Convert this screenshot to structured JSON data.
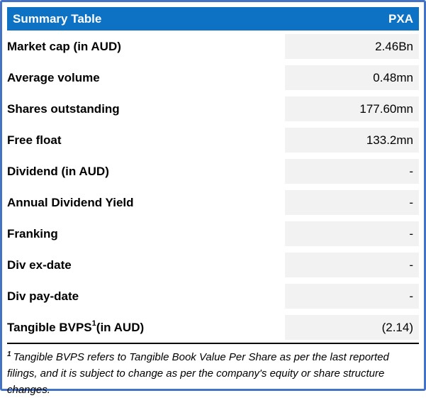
{
  "header": {
    "title": "Summary Table",
    "ticker": "PXA"
  },
  "rows": [
    {
      "label_pre": "Market cap (in AUD)",
      "sup": "",
      "label_post": "",
      "value": "2.46Bn"
    },
    {
      "label_pre": "Average volume",
      "sup": "",
      "label_post": "",
      "value": "0.48mn"
    },
    {
      "label_pre": "Shares outstanding",
      "sup": "",
      "label_post": "",
      "value": "177.60mn"
    },
    {
      "label_pre": "Free float",
      "sup": "",
      "label_post": "",
      "value": "133.2mn"
    },
    {
      "label_pre": "Dividend (in AUD)",
      "sup": "",
      "label_post": "",
      "value": "-"
    },
    {
      "label_pre": "Annual Dividend Yield",
      "sup": "",
      "label_post": "",
      "value": "-"
    },
    {
      "label_pre": "Franking",
      "sup": "",
      "label_post": "",
      "value": "-"
    },
    {
      "label_pre": "Div ex-date",
      "sup": "",
      "label_post": "",
      "value": "-"
    },
    {
      "label_pre": "Div pay-date",
      "sup": "",
      "label_post": "",
      "value": "-"
    },
    {
      "label_pre": "Tangible BVPS",
      "sup": "1",
      "label_post": " (in AUD)",
      "value": "(2.14)"
    }
  ],
  "footnote": {
    "sup": "1",
    "text": "Tangible BVPS refers to Tangible Book Value Per Share as per the last reported filings, and it is subject to change as per the company's equity or share structure changes."
  },
  "colors": {
    "border": "#4472C4",
    "header_bg": "#0D72C4",
    "header_text": "#FFFFFF",
    "value_cell_bg": "#F2F2F2",
    "text": "#000000",
    "divider": "#000000"
  }
}
